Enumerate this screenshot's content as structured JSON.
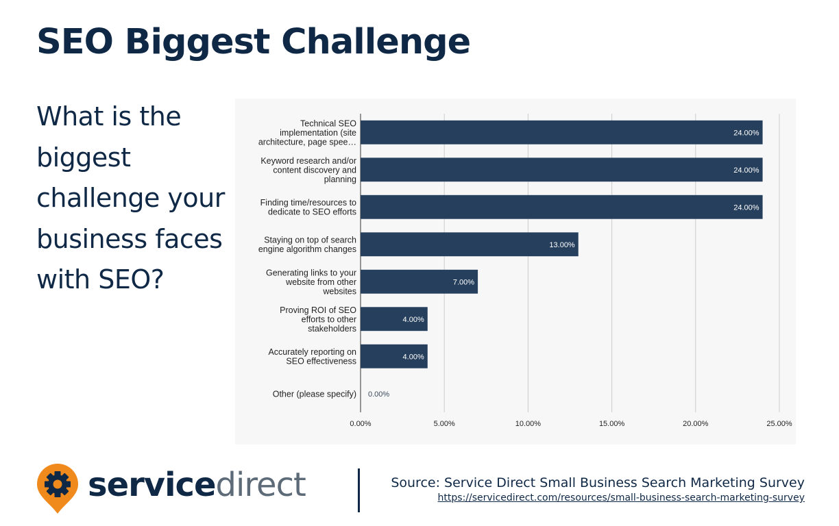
{
  "title": "SEO Biggest Challenge",
  "question": "What is the biggest challenge your business faces with SEO?",
  "chart_data": {
    "type": "bar",
    "orientation": "horizontal",
    "categories": [
      [
        "Technical SEO",
        "implementation (site",
        "architecture, page spee…"
      ],
      [
        "Keyword research and/or",
        "content discovery and",
        "planning"
      ],
      [
        "Finding time/resources to",
        "dedicate to SEO efforts"
      ],
      [
        "Staying on top of search",
        "engine algorithm changes"
      ],
      [
        "Generating links to your",
        "website from other",
        "websites"
      ],
      [
        "Proving ROI of SEO",
        "efforts to other",
        "stakeholders"
      ],
      [
        "Accurately reporting on",
        "SEO effectiveness"
      ],
      [
        "Other (please specify)"
      ]
    ],
    "values": [
      24,
      24,
      24,
      13,
      7,
      4,
      4,
      0
    ],
    "data_labels": [
      "24.00%",
      "24.00%",
      "24.00%",
      "13.00%",
      "7.00%",
      "4.00%",
      "4.00%",
      "0.00%"
    ],
    "xticks": [
      0,
      5,
      10,
      15,
      20,
      25
    ],
    "xtick_labels": [
      "0.00%",
      "5.00%",
      "10.00%",
      "15.00%",
      "20.00%",
      "25.00%"
    ],
    "xlim": [
      0,
      25
    ],
    "grid": true,
    "bar_color": "#263f5c",
    "title": "",
    "xlabel": "",
    "ylabel": ""
  },
  "logo": {
    "word1": "service",
    "word2": "direct",
    "icon": "gear-pin-icon",
    "accent": "#f08a1c"
  },
  "source": {
    "text": "Source: Service Direct Small Business Search Marketing Survey",
    "url": "https://servicedirect.com/resources/small-business-search-marketing-survey"
  }
}
